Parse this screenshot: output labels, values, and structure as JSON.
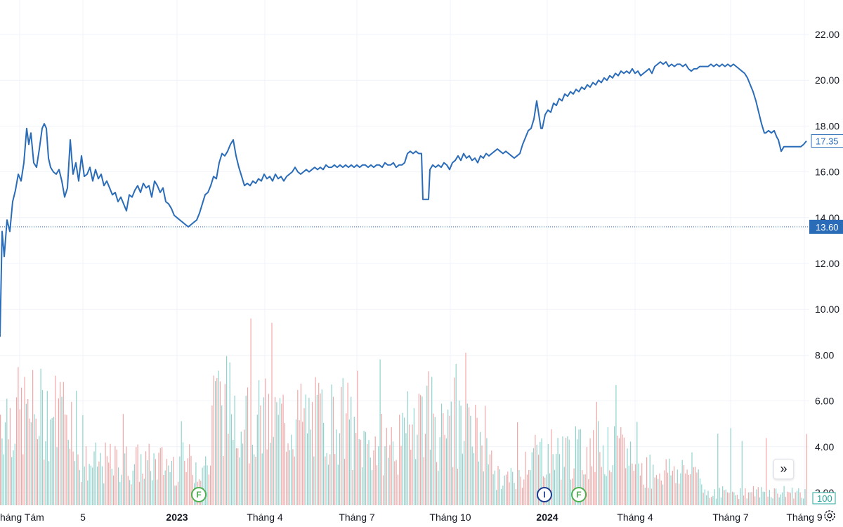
{
  "chart_data": {
    "type": "line",
    "y_axis": {
      "ticks": [
        "22.00",
        "20.00",
        "18.00",
        "16.00",
        "14.00",
        "12.00",
        "10.00",
        "8.00",
        "6.00",
        "4.00",
        "2.00"
      ],
      "range": [
        0,
        23
      ]
    },
    "x_axis": {
      "ticks": [
        {
          "label": "háng Tám",
          "bold": false
        },
        {
          "label": "5",
          "bold": false
        },
        {
          "label": "2023",
          "bold": true
        },
        {
          "label": "Tháng 4",
          "bold": false
        },
        {
          "label": "Tháng 7",
          "bold": false
        },
        {
          "label": "Tháng 10",
          "bold": false
        },
        {
          "label": "2024",
          "bold": true
        },
        {
          "label": "Tháng 4",
          "bold": false
        },
        {
          "label": "Tháng 7",
          "bold": false
        },
        {
          "label": "Tháng 9",
          "bold": false
        }
      ]
    },
    "price_series": {
      "color": "#2b6cb8",
      "points": [
        [
          0,
          8.8
        ],
        [
          3,
          13.4
        ],
        [
          6,
          12.3
        ],
        [
          10,
          13.9
        ],
        [
          14,
          13.4
        ],
        [
          18,
          14.7
        ],
        [
          22,
          15.2
        ],
        [
          26,
          15.9
        ],
        [
          30,
          15.6
        ],
        [
          34,
          16.4
        ],
        [
          38,
          17.9
        ],
        [
          41,
          17.2
        ],
        [
          44,
          17.7
        ],
        [
          48,
          16.4
        ],
        [
          52,
          16.2
        ],
        [
          56,
          17.0
        ],
        [
          60,
          17.9
        ],
        [
          63,
          18.1
        ],
        [
          66,
          17.9
        ],
        [
          69,
          16.6
        ],
        [
          72,
          16.2
        ],
        [
          76,
          16.0
        ],
        [
          80,
          15.9
        ],
        [
          84,
          16.1
        ],
        [
          88,
          15.6
        ],
        [
          92,
          14.9
        ],
        [
          96,
          15.3
        ],
        [
          100,
          17.4
        ],
        [
          104,
          15.9
        ],
        [
          108,
          16.4
        ],
        [
          112,
          15.6
        ],
        [
          116,
          16.7
        ],
        [
          120,
          15.8
        ],
        [
          124,
          15.9
        ],
        [
          128,
          16.2
        ],
        [
          132,
          15.6
        ],
        [
          136,
          16.1
        ],
        [
          140,
          15.7
        ],
        [
          144,
          15.9
        ],
        [
          148,
          15.4
        ],
        [
          152,
          15.6
        ],
        [
          156,
          15.3
        ],
        [
          160,
          15.0
        ],
        [
          164,
          15.1
        ],
        [
          168,
          14.7
        ],
        [
          172,
          14.9
        ],
        [
          176,
          14.6
        ],
        [
          180,
          14.3
        ],
        [
          184,
          15.0
        ],
        [
          188,
          14.9
        ],
        [
          192,
          15.2
        ],
        [
          196,
          15.4
        ],
        [
          200,
          15.1
        ],
        [
          204,
          15.5
        ],
        [
          208,
          15.3
        ],
        [
          212,
          15.4
        ],
        [
          216,
          14.9
        ],
        [
          220,
          15.6
        ],
        [
          224,
          15.4
        ],
        [
          228,
          15.1
        ],
        [
          232,
          15.3
        ],
        [
          236,
          14.7
        ],
        [
          240,
          14.6
        ],
        [
          244,
          14.4
        ],
        [
          248,
          14.1
        ],
        [
          252,
          14.0
        ],
        [
          256,
          13.9
        ],
        [
          260,
          13.8
        ],
        [
          264,
          13.7
        ],
        [
          268,
          13.6
        ],
        [
          272,
          13.7
        ],
        [
          276,
          13.8
        ],
        [
          280,
          13.9
        ],
        [
          284,
          14.2
        ],
        [
          288,
          14.6
        ],
        [
          292,
          15.0
        ],
        [
          296,
          15.1
        ],
        [
          300,
          15.4
        ],
        [
          304,
          15.8
        ],
        [
          308,
          15.7
        ],
        [
          312,
          16.4
        ],
        [
          316,
          16.8
        ],
        [
          320,
          16.7
        ],
        [
          324,
          16.9
        ],
        [
          328,
          17.2
        ],
        [
          332,
          17.4
        ],
        [
          336,
          16.7
        ],
        [
          340,
          16.2
        ],
        [
          344,
          15.8
        ],
        [
          348,
          15.4
        ],
        [
          352,
          15.5
        ],
        [
          356,
          15.4
        ],
        [
          360,
          15.6
        ],
        [
          364,
          15.5
        ],
        [
          368,
          15.7
        ],
        [
          372,
          15.6
        ],
        [
          376,
          15.9
        ],
        [
          380,
          15.7
        ],
        [
          384,
          15.8
        ],
        [
          388,
          15.6
        ],
        [
          392,
          15.9
        ],
        [
          396,
          15.7
        ],
        [
          400,
          15.8
        ],
        [
          404,
          15.6
        ],
        [
          408,
          15.8
        ],
        [
          412,
          15.9
        ],
        [
          416,
          16.0
        ],
        [
          420,
          16.2
        ],
        [
          424,
          16.0
        ],
        [
          428,
          15.9
        ],
        [
          432,
          16.0
        ],
        [
          436,
          16.1
        ],
        [
          440,
          16.0
        ],
        [
          444,
          16.1
        ],
        [
          448,
          16.2
        ],
        [
          452,
          16.1
        ],
        [
          456,
          16.2
        ],
        [
          460,
          16.1
        ],
        [
          464,
          16.3
        ],
        [
          468,
          16.2
        ],
        [
          472,
          16.2
        ],
        [
          476,
          16.3
        ],
        [
          480,
          16.2
        ],
        [
          484,
          16.3
        ],
        [
          488,
          16.2
        ],
        [
          492,
          16.3
        ],
        [
          496,
          16.2
        ],
        [
          500,
          16.3
        ],
        [
          504,
          16.2
        ],
        [
          508,
          16.3
        ],
        [
          512,
          16.2
        ],
        [
          516,
          16.3
        ],
        [
          520,
          16.3
        ],
        [
          524,
          16.2
        ],
        [
          528,
          16.3
        ],
        [
          532,
          16.2
        ],
        [
          536,
          16.3
        ],
        [
          540,
          16.3
        ],
        [
          544,
          16.2
        ],
        [
          548,
          16.4
        ],
        [
          552,
          16.3
        ],
        [
          556,
          16.3
        ],
        [
          560,
          16.4
        ],
        [
          564,
          16.2
        ],
        [
          568,
          16.3
        ],
        [
          572,
          16.3
        ],
        [
          576,
          16.4
        ],
        [
          580,
          16.8
        ],
        [
          584,
          16.9
        ],
        [
          588,
          16.8
        ],
        [
          592,
          16.9
        ],
        [
          596,
          16.8
        ],
        [
          600,
          16.8
        ],
        [
          602,
          14.8
        ],
        [
          606,
          14.8
        ],
        [
          610,
          14.8
        ],
        [
          612,
          16.1
        ],
        [
          616,
          16.3
        ],
        [
          620,
          16.2
        ],
        [
          624,
          16.3
        ],
        [
          628,
          16.2
        ],
        [
          632,
          16.4
        ],
        [
          636,
          16.3
        ],
        [
          640,
          16.1
        ],
        [
          644,
          16.4
        ],
        [
          648,
          16.5
        ],
        [
          652,
          16.7
        ],
        [
          656,
          16.5
        ],
        [
          660,
          16.8
        ],
        [
          664,
          16.6
        ],
        [
          668,
          16.7
        ],
        [
          672,
          16.5
        ],
        [
          676,
          16.6
        ],
        [
          680,
          16.4
        ],
        [
          684,
          16.7
        ],
        [
          688,
          16.6
        ],
        [
          692,
          16.8
        ],
        [
          696,
          16.7
        ],
        [
          700,
          16.8
        ],
        [
          704,
          16.9
        ],
        [
          708,
          17.0
        ],
        [
          712,
          16.9
        ],
        [
          716,
          16.8
        ],
        [
          720,
          16.9
        ],
        [
          724,
          16.8
        ],
        [
          728,
          16.7
        ],
        [
          732,
          16.6
        ],
        [
          736,
          16.7
        ],
        [
          740,
          16.8
        ],
        [
          744,
          17.2
        ],
        [
          748,
          17.5
        ],
        [
          752,
          17.8
        ],
        [
          756,
          17.9
        ],
        [
          760,
          18.3
        ],
        [
          764,
          19.1
        ],
        [
          767,
          18.5
        ],
        [
          770,
          17.9
        ],
        [
          772,
          17.9
        ],
        [
          776,
          18.5
        ],
        [
          780,
          18.7
        ],
        [
          784,
          18.6
        ],
        [
          788,
          19.0
        ],
        [
          792,
          18.9
        ],
        [
          796,
          19.2
        ],
        [
          800,
          19.1
        ],
        [
          804,
          19.4
        ],
        [
          808,
          19.3
        ],
        [
          812,
          19.5
        ],
        [
          816,
          19.4
        ],
        [
          820,
          19.6
        ],
        [
          824,
          19.5
        ],
        [
          828,
          19.7
        ],
        [
          832,
          19.6
        ],
        [
          836,
          19.8
        ],
        [
          840,
          19.7
        ],
        [
          844,
          19.9
        ],
        [
          848,
          19.8
        ],
        [
          852,
          20.0
        ],
        [
          856,
          19.9
        ],
        [
          860,
          20.1
        ],
        [
          864,
          20.0
        ],
        [
          868,
          20.2
        ],
        [
          872,
          20.1
        ],
        [
          876,
          20.3
        ],
        [
          880,
          20.2
        ],
        [
          884,
          20.4
        ],
        [
          888,
          20.3
        ],
        [
          892,
          20.4
        ],
        [
          896,
          20.3
        ],
        [
          900,
          20.5
        ],
        [
          904,
          20.3
        ],
        [
          908,
          20.4
        ],
        [
          912,
          20.2
        ],
        [
          916,
          20.3
        ],
        [
          920,
          20.4
        ],
        [
          924,
          20.5
        ],
        [
          928,
          20.3
        ],
        [
          932,
          20.6
        ],
        [
          936,
          20.7
        ],
        [
          940,
          20.8
        ],
        [
          944,
          20.7
        ],
        [
          948,
          20.8
        ],
        [
          952,
          20.6
        ],
        [
          956,
          20.7
        ],
        [
          960,
          20.6
        ],
        [
          964,
          20.7
        ],
        [
          968,
          20.7
        ],
        [
          972,
          20.6
        ],
        [
          976,
          20.7
        ],
        [
          980,
          20.5
        ],
        [
          984,
          20.4
        ],
        [
          988,
          20.5
        ],
        [
          992,
          20.5
        ],
        [
          996,
          20.6
        ],
        [
          1000,
          20.6
        ],
        [
          1004,
          20.6
        ],
        [
          1008,
          20.6
        ],
        [
          1012,
          20.7
        ],
        [
          1016,
          20.6
        ],
        [
          1020,
          20.7
        ],
        [
          1024,
          20.6
        ],
        [
          1028,
          20.7
        ],
        [
          1032,
          20.6
        ],
        [
          1036,
          20.7
        ],
        [
          1040,
          20.6
        ],
        [
          1044,
          20.7
        ],
        [
          1048,
          20.6
        ],
        [
          1052,
          20.5
        ],
        [
          1056,
          20.4
        ],
        [
          1060,
          20.3
        ],
        [
          1064,
          20.1
        ],
        [
          1068,
          19.8
        ],
        [
          1072,
          19.5
        ],
        [
          1076,
          19.1
        ],
        [
          1080,
          18.6
        ],
        [
          1084,
          18.1
        ],
        [
          1088,
          17.7
        ],
        [
          1090,
          17.7
        ],
        [
          1094,
          17.8
        ],
        [
          1098,
          17.7
        ],
        [
          1102,
          17.8
        ],
        [
          1106,
          17.5
        ],
        [
          1108,
          17.4
        ],
        [
          1112,
          16.9
        ],
        [
          1116,
          17.1
        ],
        [
          1120,
          17.1
        ],
        [
          1124,
          17.1
        ],
        [
          1128,
          17.1
        ],
        [
          1132,
          17.1
        ],
        [
          1136,
          17.1
        ],
        [
          1140,
          17.1
        ],
        [
          1144,
          17.2
        ],
        [
          1148,
          17.35
        ]
      ]
    },
    "volume_bars": {
      "up_color": "#8fd3cc",
      "down_color": "#f2a7a7",
      "note_scale": "volume values read against same right axis units",
      "values_sample_count": 380
    },
    "reference_line": {
      "value": 13.6,
      "label": "13.60",
      "color": "#2b6cb8"
    },
    "last_price": {
      "value": 17.35,
      "label": "17.35"
    },
    "volume_label": "100",
    "events": [
      {
        "label": "F",
        "color": "#4caf50"
      },
      {
        "label": "I",
        "color": "#1a3a8f"
      },
      {
        "label": "F",
        "color": "#4caf50"
      }
    ],
    "grid": true
  },
  "controls": {
    "scroll_right_glyph": "»",
    "settings_icon": "gear-icon"
  }
}
